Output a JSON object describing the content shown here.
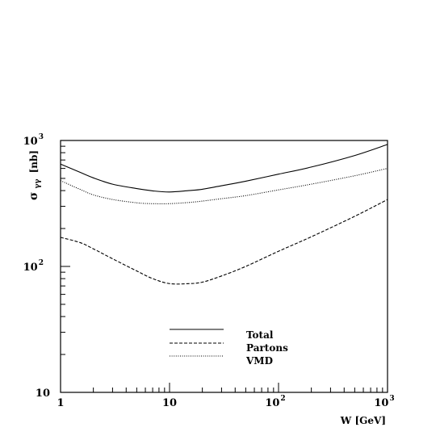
{
  "chart_data": {
    "type": "line",
    "title": "",
    "xlabel": "W [GeV]",
    "ylabel": {
      "symbol": "σ",
      "sub": "γγ",
      "unit": "[nb]"
    },
    "x_scale": "log",
    "y_scale": "log",
    "xlim": [
      1,
      1000
    ],
    "ylim": [
      10,
      1000
    ],
    "x_ticks": [
      {
        "value": 1,
        "base": "1",
        "exp": ""
      },
      {
        "value": 10,
        "base": "10",
        "exp": ""
      },
      {
        "value": 100,
        "base": "10",
        "exp": "2"
      },
      {
        "value": 1000,
        "base": "10",
        "exp": "3"
      }
    ],
    "y_ticks": [
      {
        "value": 10,
        "base": "10",
        "exp": ""
      },
      {
        "value": 100,
        "base": "10",
        "exp": "2"
      },
      {
        "value": 1000,
        "base": "10",
        "exp": "3"
      }
    ],
    "grid": false,
    "legend_position": "lower-center",
    "series": [
      {
        "name": "Total",
        "style": "solid",
        "x": [
          1,
          1.5,
          2,
          3,
          5,
          7,
          10,
          15,
          20,
          30,
          50,
          100,
          200,
          500,
          1000
        ],
        "y": [
          650,
          560,
          505,
          450,
          415,
          398,
          390,
          400,
          410,
          437,
          475,
          540,
          615,
          760,
          930
        ]
      },
      {
        "name": "Partons",
        "style": "dashed",
        "x": [
          1,
          1.5,
          2,
          3,
          5,
          7,
          10,
          15,
          20,
          30,
          50,
          100,
          200,
          500,
          1000
        ],
        "y": [
          170,
          155,
          138,
          115,
          92,
          80,
          73,
          73,
          75,
          84,
          100,
          132,
          172,
          250,
          340
        ]
      },
      {
        "name": "VMD",
        "style": "dotted",
        "x": [
          1,
          1.5,
          2,
          3,
          5,
          7,
          10,
          15,
          20,
          30,
          50,
          100,
          200,
          500,
          1000
        ],
        "y": [
          480,
          410,
          370,
          340,
          320,
          315,
          315,
          322,
          330,
          345,
          365,
          405,
          450,
          525,
          600
        ]
      }
    ]
  }
}
